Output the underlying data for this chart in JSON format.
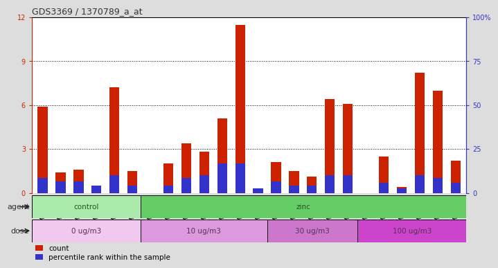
{
  "title": "GDS3369 / 1370789_a_at",
  "samples": [
    "GSM280163",
    "GSM280164",
    "GSM280165",
    "GSM280166",
    "GSM280167",
    "GSM280168",
    "GSM280169",
    "GSM280170",
    "GSM280171",
    "GSM280172",
    "GSM280173",
    "GSM280174",
    "GSM280175",
    "GSM280176",
    "GSM280177",
    "GSM280178",
    "GSM280179",
    "GSM280180",
    "GSM280181",
    "GSM280182",
    "GSM280183",
    "GSM280184",
    "GSM280185",
    "GSM280186"
  ],
  "count_values": [
    5.9,
    1.4,
    1.6,
    0.0,
    7.2,
    1.5,
    0.0,
    2.0,
    3.4,
    2.8,
    5.1,
    11.5,
    0.3,
    2.1,
    1.5,
    1.1,
    6.4,
    6.1,
    0.0,
    2.5,
    0.4,
    8.2,
    7.0,
    2.2
  ],
  "percentile_values": [
    1.0,
    0.8,
    0.8,
    0.5,
    1.2,
    0.5,
    0.0,
    0.5,
    1.0,
    1.2,
    2.0,
    2.0,
    0.3,
    0.8,
    0.5,
    0.5,
    1.2,
    1.2,
    0.0,
    0.7,
    0.3,
    1.2,
    1.0,
    0.7
  ],
  "count_color": "#cc2200",
  "percentile_color": "#3333cc",
  "ylim_left": [
    0,
    12
  ],
  "ylim_right": [
    0,
    100
  ],
  "yticks_left": [
    0,
    3,
    6,
    9,
    12
  ],
  "yticks_right": [
    0,
    25,
    50,
    75,
    100
  ],
  "ytick_labels_right": [
    "0",
    "25",
    "50",
    "75",
    "100%"
  ],
  "agent_groups": [
    {
      "label": "control",
      "start": 0,
      "end": 5,
      "color": "#aaeaaa"
    },
    {
      "label": "zinc",
      "start": 6,
      "end": 23,
      "color": "#66cc66"
    }
  ],
  "dose_groups": [
    {
      "label": "0 ug/m3",
      "start": 0,
      "end": 5,
      "color": "#f0c8f0"
    },
    {
      "label": "10 ug/m3",
      "start": 6,
      "end": 12,
      "color": "#dd99dd"
    },
    {
      "label": "30 ug/m3",
      "start": 13,
      "end": 17,
      "color": "#cc77cc"
    },
    {
      "label": "100 ug/m3",
      "start": 18,
      "end": 23,
      "color": "#cc44cc"
    }
  ],
  "bar_width": 0.55,
  "background_color": "#dddddd",
  "plot_bg_color": "#ffffff",
  "left_axis_color": "#cc2200",
  "right_axis_color": "#3333cc"
}
